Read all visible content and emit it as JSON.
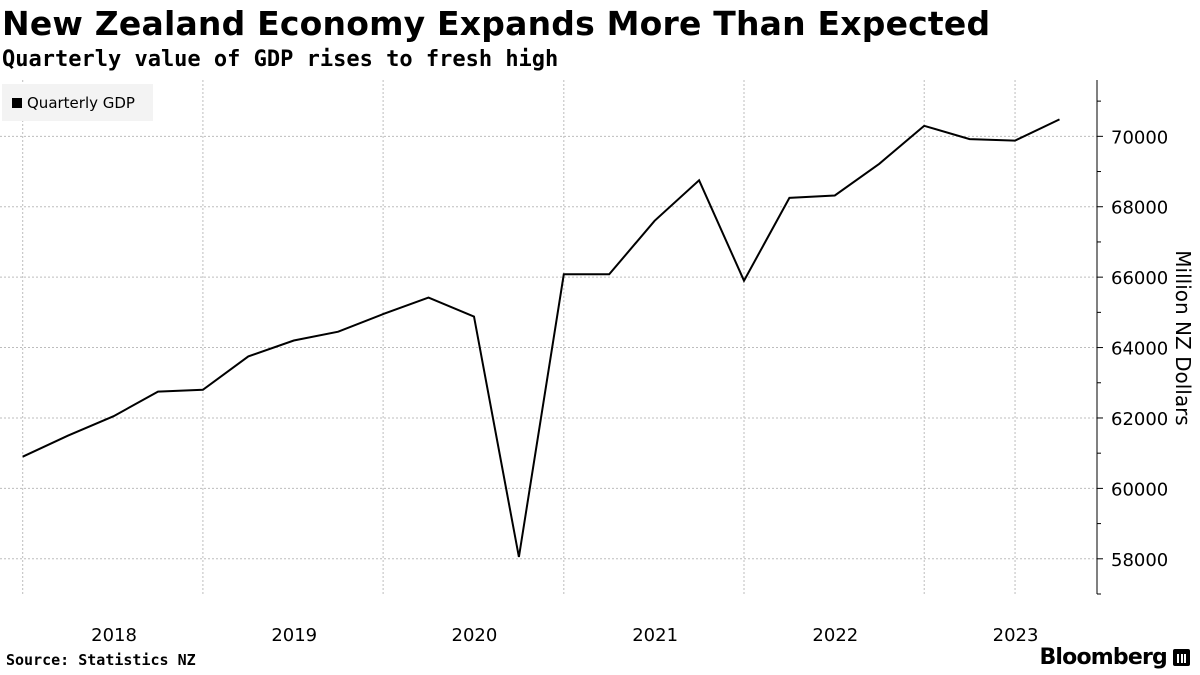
{
  "header": {
    "title": "New Zealand Economy Expands More Than Expected",
    "subtitle": "Quarterly value of GDP rises to fresh high"
  },
  "footer": {
    "source": "Source: Statistics NZ",
    "brand": "Bloomberg"
  },
  "colors": {
    "line": "#000000",
    "grid": "#bdbdbd",
    "legend_bg": "#f3f3f3"
  },
  "chart_data": {
    "type": "line",
    "title": "New Zealand Economy Expands More Than Expected",
    "subtitle": "Quarterly value of GDP rises to fresh high",
    "ylabel": "Million NZ Dollars",
    "xlabel": "",
    "ylim": [
      57000,
      71600
    ],
    "xlim": [
      "2017-05-15",
      "2023-06-15"
    ],
    "y_ticks": [
      58000,
      60000,
      62000,
      64000,
      66000,
      68000,
      70000
    ],
    "y_tick_labels": [
      "58000",
      "60000",
      "62000",
      "64000",
      "66000",
      "68000",
      "70000"
    ],
    "x_tick_labels": [
      {
        "label": "2018",
        "date": "2018-01-01"
      },
      {
        "label": "2019",
        "date": "2019-01-01"
      },
      {
        "label": "2020",
        "date": "2020-01-01"
      },
      {
        "label": "2021",
        "date": "2021-01-01"
      },
      {
        "label": "2022",
        "date": "2022-01-01"
      },
      {
        "label": "2023",
        "date": "2023-01-01"
      }
    ],
    "x_gridlines": [
      "2017-06-30",
      "2018-06-30",
      "2019-06-30",
      "2020-06-30",
      "2021-06-30",
      "2022-06-30",
      "2022-12-31"
    ],
    "grid": true,
    "legend": {
      "placement": "top-left",
      "entries": [
        "Quarterly GDP"
      ]
    },
    "series": [
      {
        "name": "Quarterly GDP",
        "color": "#000000",
        "points": [
          {
            "x": "2017-06-30",
            "y": 60900
          },
          {
            "x": "2017-09-30",
            "y": 61500
          },
          {
            "x": "2017-12-31",
            "y": 62050
          },
          {
            "x": "2018-03-31",
            "y": 62750
          },
          {
            "x": "2018-06-30",
            "y": 62800
          },
          {
            "x": "2018-09-30",
            "y": 63750
          },
          {
            "x": "2018-12-31",
            "y": 64200
          },
          {
            "x": "2019-03-31",
            "y": 64450
          },
          {
            "x": "2019-06-30",
            "y": 64950
          },
          {
            "x": "2019-09-30",
            "y": 65420
          },
          {
            "x": "2019-12-31",
            "y": 64880
          },
          {
            "x": "2020-03-31",
            "y": 58050
          },
          {
            "x": "2020-06-30",
            "y": 66080
          },
          {
            "x": "2020-09-30",
            "y": 66080
          },
          {
            "x": "2020-12-31",
            "y": 67600
          },
          {
            "x": "2021-03-31",
            "y": 68750
          },
          {
            "x": "2021-06-30",
            "y": 65900
          },
          {
            "x": "2021-09-30",
            "y": 68250
          },
          {
            "x": "2021-12-31",
            "y": 68320
          },
          {
            "x": "2022-03-31",
            "y": 69220
          },
          {
            "x": "2022-06-30",
            "y": 70300
          },
          {
            "x": "2022-09-30",
            "y": 69920
          },
          {
            "x": "2022-12-31",
            "y": 69880
          },
          {
            "x": "2023-03-31",
            "y": 70480
          }
        ]
      }
    ]
  }
}
